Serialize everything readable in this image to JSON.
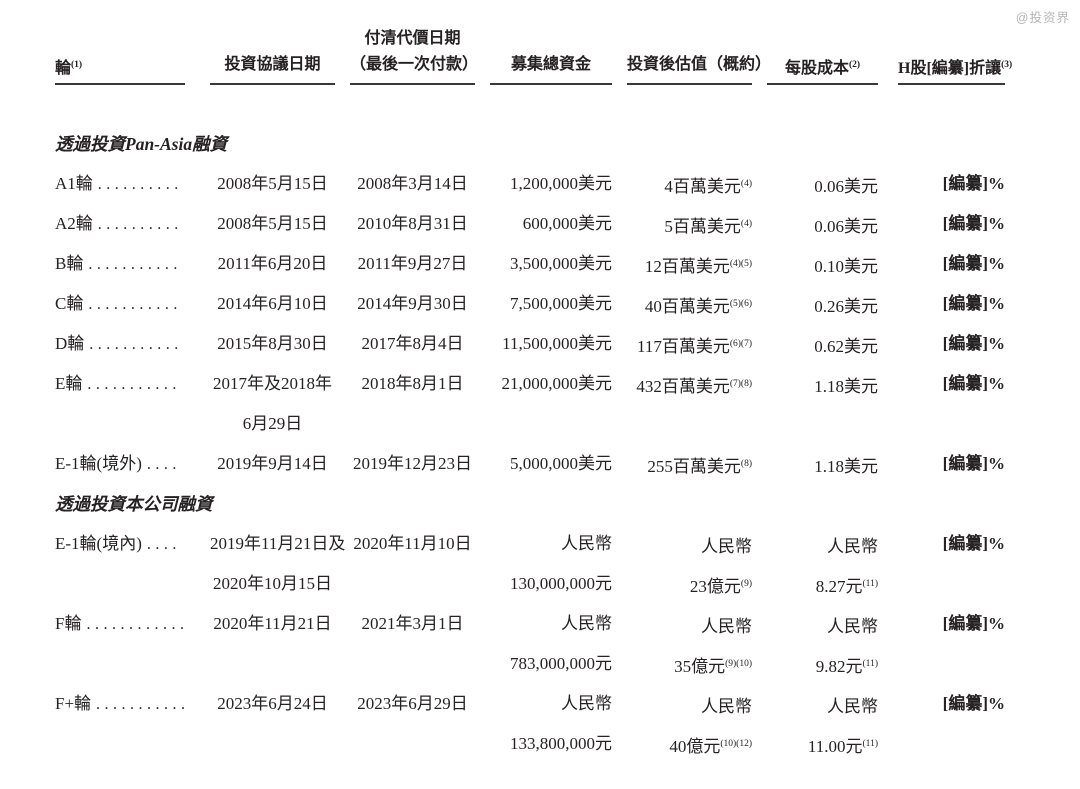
{
  "watermark": "@投资界",
  "colors": {
    "text": "#262223",
    "rule": "#3b3738",
    "watermark": "#b5b5b5",
    "background": "#ffffff"
  },
  "table": {
    "headers": {
      "round": "輪",
      "round_sup": "(1)",
      "agreement_date": "投資協議日期",
      "payment_date_line1": "付清代價日期",
      "payment_date_line2": "（最後一次付款）",
      "total_raised": "募集總資金",
      "post_valuation": "投資後估值（概約）",
      "cost_per_share": "每股成本",
      "cost_per_share_sup": "(2)",
      "h_share_discount": "H股[編纂]折讓",
      "h_share_discount_sup": "(3)"
    },
    "rows": [
      {
        "kind": "section",
        "label": "透過投資Pan-Asia融資"
      },
      {
        "kind": "data",
        "round": "A1輪",
        "dots": "..........",
        "date1a": "2008年5月15日",
        "date1b": "",
        "date2": "2008年3月14日",
        "raised1": "1,200,000美元",
        "raised2": "",
        "val1": "4百萬美元",
        "val1sup": "(4)",
        "val2": "",
        "val2sup": "",
        "cost1": "0.06美元",
        "cost1sup": "",
        "cost2": "",
        "cost2sup": "",
        "discount": "[編纂]%"
      },
      {
        "kind": "data",
        "round": "A2輪",
        "dots": "..........",
        "date1a": "2008年5月15日",
        "date1b": "",
        "date2": "2010年8月31日",
        "raised1": "600,000美元",
        "raised2": "",
        "val1": "5百萬美元",
        "val1sup": "(4)",
        "val2": "",
        "val2sup": "",
        "cost1": "0.06美元",
        "cost1sup": "",
        "cost2": "",
        "cost2sup": "",
        "discount": "[編纂]%"
      },
      {
        "kind": "data",
        "round": "B輪",
        "dots": "...........",
        "date1a": "2011年6月20日",
        "date1b": "",
        "date2": "2011年9月27日",
        "raised1": "3,500,000美元",
        "raised2": "",
        "val1": "12百萬美元",
        "val1sup": "(4)(5)",
        "val2": "",
        "val2sup": "",
        "cost1": "0.10美元",
        "cost1sup": "",
        "cost2": "",
        "cost2sup": "",
        "discount": "[編纂]%"
      },
      {
        "kind": "data",
        "round": "C輪",
        "dots": "...........",
        "date1a": "2014年6月10日",
        "date1b": "",
        "date2": "2014年9月30日",
        "raised1": "7,500,000美元",
        "raised2": "",
        "val1": "40百萬美元",
        "val1sup": "(5)(6)",
        "val2": "",
        "val2sup": "",
        "cost1": "0.26美元",
        "cost1sup": "",
        "cost2": "",
        "cost2sup": "",
        "discount": "[編纂]%"
      },
      {
        "kind": "data",
        "round": "D輪",
        "dots": "...........",
        "date1a": "2015年8月30日",
        "date1b": "",
        "date2": "2017年8月4日",
        "raised1": "11,500,000美元",
        "raised2": "",
        "val1": "117百萬美元",
        "val1sup": "(6)(7)",
        "val2": "",
        "val2sup": "",
        "cost1": "0.62美元",
        "cost1sup": "",
        "cost2": "",
        "cost2sup": "",
        "discount": "[編纂]%"
      },
      {
        "kind": "data",
        "round": "E輪",
        "dots": "...........",
        "date1a": "2017年及2018年",
        "date1b": "6月29日",
        "date2": "2018年8月1日",
        "raised1": "21,000,000美元",
        "raised2": "",
        "val1": "432百萬美元",
        "val1sup": "(7)(8)",
        "val2": "",
        "val2sup": "",
        "cost1": "1.18美元",
        "cost1sup": "",
        "cost2": "",
        "cost2sup": "",
        "discount": "[編纂]%"
      },
      {
        "kind": "data",
        "round": "E-1輪(境外)",
        "dots": "....",
        "date1a": "2019年9月14日",
        "date1b": "",
        "date2": "2019年12月23日",
        "raised1": "5,000,000美元",
        "raised2": "",
        "val1": "255百萬美元",
        "val1sup": "(8)",
        "val2": "",
        "val2sup": "",
        "cost1": "1.18美元",
        "cost1sup": "",
        "cost2": "",
        "cost2sup": "",
        "discount": "[編纂]%"
      },
      {
        "kind": "section",
        "label": "透過投資本公司融資"
      },
      {
        "kind": "data",
        "round": "E-1輪(境內)",
        "dots": "....",
        "date1a": "2019年11月21日及",
        "date1b": "2020年10月15日",
        "date2": "2020年11月10日",
        "raised1": "人民幣",
        "raised2": "130,000,000元",
        "val1": "人民幣",
        "val1sup": "",
        "val2": "23億元",
        "val2sup": "(9)",
        "cost1": "人民幣",
        "cost1sup": "",
        "cost2": "8.27元",
        "cost2sup": "(11)",
        "discount": "[編纂]%"
      },
      {
        "kind": "data",
        "round": "F輪",
        "dots": "............",
        "date1a": "2020年11月21日",
        "date1b": "",
        "date2": "2021年3月1日",
        "raised1": "人民幣",
        "raised2": "783,000,000元",
        "val1": "人民幣",
        "val1sup": "",
        "val2": "35億元",
        "val2sup": "(9)(10)",
        "cost1": "人民幣",
        "cost1sup": "",
        "cost2": "9.82元",
        "cost2sup": "(11)",
        "discount": "[編纂]%"
      },
      {
        "kind": "data",
        "round": "F+輪",
        "dots": "...........",
        "date1a": "2023年6月24日",
        "date1b": "",
        "date2": "2023年6月29日",
        "raised1": "人民幣",
        "raised2": "133,800,000元",
        "val1": "人民幣",
        "val1sup": "",
        "val2": "40億元",
        "val2sup": "(10)(12)",
        "cost1": "人民幣",
        "cost1sup": "",
        "cost2": "11.00元",
        "cost2sup": "(11)",
        "discount": "[編纂]%"
      }
    ]
  }
}
